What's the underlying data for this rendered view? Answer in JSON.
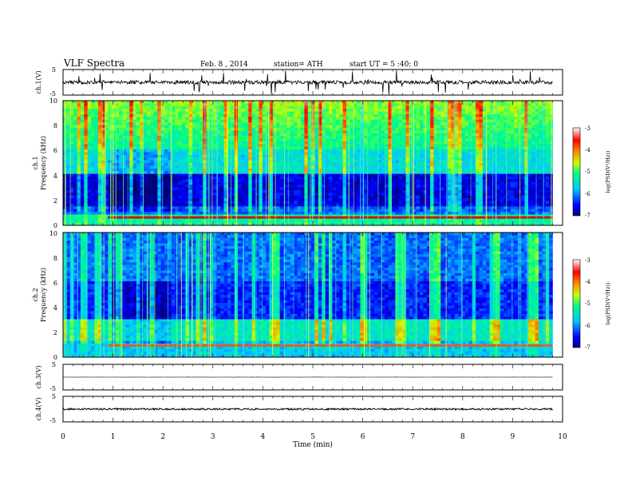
{
  "header": {
    "title": "VLF Spectra",
    "date": "Feb. 8 , 2014",
    "station": "station= ATH",
    "start": "start  UT =  5 :40: 0"
  },
  "chart_data": {
    "type": "heatmap",
    "x_axis": {
      "label": "Time (min)",
      "range": [
        0,
        10
      ],
      "ticks": [
        "0",
        "1",
        "2",
        "3",
        "4",
        "5",
        "6",
        "7",
        "8",
        "9",
        "10"
      ]
    },
    "panels": [
      {
        "id": "ch1-waveform",
        "type": "line",
        "ylabel": "ch.1(V)",
        "ylim": [
          -5,
          5
        ],
        "yticks": [
          "5",
          "-5"
        ],
        "baseline": 0,
        "noise_amplitude": 0.7,
        "spikes": "frequent"
      },
      {
        "id": "ch1-spectrogram",
        "type": "heatmap",
        "ylabel": [
          "ch.1",
          "Frequency (kHz)"
        ],
        "ylim": [
          0,
          10
        ],
        "yticks": [
          "0",
          "2",
          "4",
          "6",
          "8",
          "10"
        ],
        "data_end_min": 9.8,
        "quiet_band_khz": [
          1.6,
          4.2
        ],
        "quiet_period_min": [
          0.9,
          2.2
        ],
        "line_at_khz": 0.6
      },
      {
        "id": "ch2-spectrogram",
        "type": "heatmap",
        "ylabel": [
          "ch.2",
          "Frequency (kHz)"
        ],
        "ylim": [
          0,
          10
        ],
        "yticks": [
          "0",
          "2",
          "4",
          "6",
          "8",
          "10"
        ],
        "data_end_min": 9.8,
        "quiet_band_khz": [
          3.0,
          5.5
        ],
        "quiet_period_min": [
          0.9,
          2.2
        ],
        "line_at_khz": 0.9
      },
      {
        "id": "ch3-waveform",
        "type": "line",
        "ylabel": "ch.3(V)",
        "ylim": [
          -5,
          5
        ],
        "yticks": [
          "5",
          "-5"
        ],
        "baseline": 0,
        "noise_amplitude": 0.05
      },
      {
        "id": "ch4-waveform",
        "type": "line",
        "ylabel": "ch.4(V)",
        "ylim": [
          -5,
          5
        ],
        "yticks": [
          "5",
          "-5"
        ],
        "baseline": 0,
        "noise_amplitude": 0.35
      }
    ],
    "colorbar": {
      "label": "log(PSD(V²/Hz))",
      "range": [
        -7,
        -3
      ],
      "ticks": [
        "-3",
        "-4",
        "-5",
        "-6",
        "-7"
      ],
      "colors": [
        "#000080",
        "#0000ff",
        "#00c8ff",
        "#00ff80",
        "#c8ff00",
        "#ff8000",
        "#ff0000",
        "#ffffff"
      ]
    }
  }
}
